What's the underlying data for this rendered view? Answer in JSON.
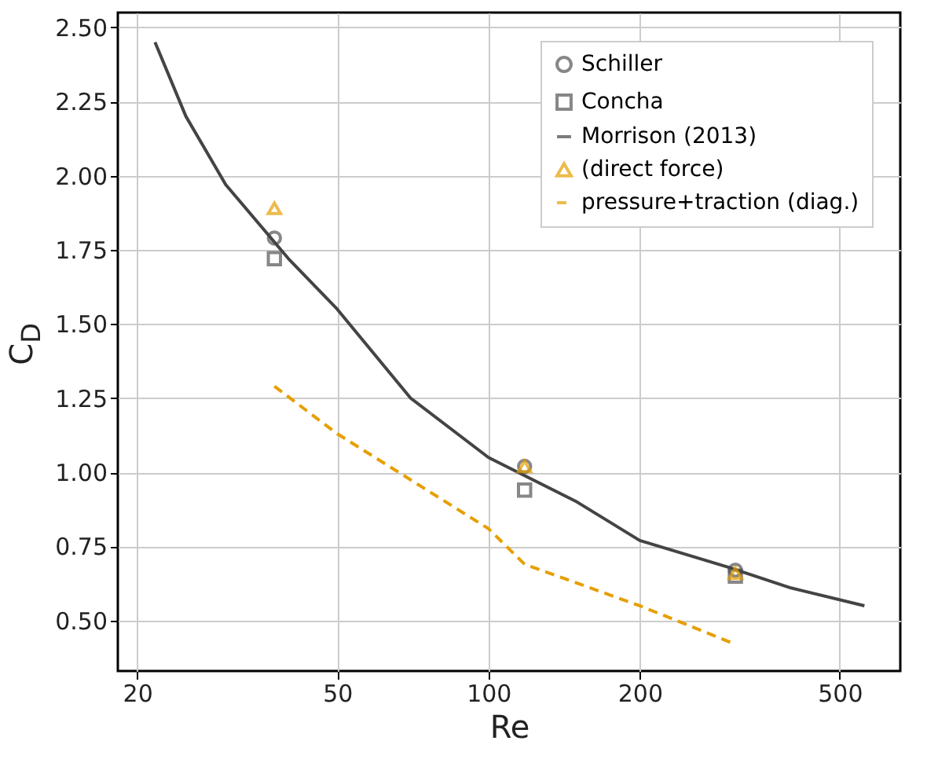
{
  "chart_data": {
    "type": "scatter",
    "xlabel": "Re",
    "ylabel": "C$_{D}$",
    "log": "x",
    "grid": true,
    "legend": "top right",
    "xlim": [
      18.3,
      660
    ],
    "xticks": [
      20,
      50,
      100,
      200,
      500
    ],
    "ylim": [
      0.33,
      2.55
    ],
    "yticks": [
      {
        "value": 0.5,
        "label": "0.50"
      },
      {
        "value": 0.75,
        "label": "0.75"
      },
      {
        "value": 1.0,
        "label": "1.00"
      },
      {
        "value": 1.25,
        "label": "1.25"
      },
      {
        "value": 1.5,
        "label": "1.50"
      },
      {
        "value": 1.75,
        "label": "1.75"
      },
      {
        "value": 2.0,
        "label": "2.00"
      },
      {
        "value": 2.25,
        "label": "2.25"
      },
      {
        "value": 2.5,
        "label": "2.50"
      }
    ],
    "series": [
      {
        "name": "Schiller",
        "marker": "circle",
        "color": "#555555",
        "x": [
          37.5,
          118,
          310
        ],
        "values": [
          1.79,
          1.02,
          0.67
        ]
      },
      {
        "name": "Concha",
        "marker": "square",
        "color": "#555555",
        "x": [
          37.5,
          118,
          310
        ],
        "values": [
          1.72,
          0.94,
          0.65
        ]
      },
      {
        "name": "Morrison (2013)",
        "type": "line",
        "line_style": "solid",
        "color": "#444444",
        "x": [
          21.7,
          25,
          30,
          40,
          50,
          70,
          100,
          150,
          200,
          300,
          400,
          560
        ],
        "values": [
          2.45,
          2.2,
          1.97,
          1.72,
          1.55,
          1.25,
          1.05,
          0.9,
          0.77,
          0.68,
          0.61,
          0.55
        ]
      },
      {
        "name": "(direct force)",
        "marker": "triangle",
        "color": "#e69f00",
        "x": [
          37.5,
          118,
          310
        ],
        "values": [
          1.89,
          1.02,
          0.66
        ]
      },
      {
        "name": "pressure+traction (diag.)",
        "type": "line",
        "line_style": "dashed",
        "color": "#e69f00",
        "x": [
          37.5,
          50,
          100,
          118,
          200,
          310
        ],
        "values": [
          1.29,
          1.13,
          0.81,
          0.69,
          0.55,
          0.42
        ]
      }
    ]
  }
}
